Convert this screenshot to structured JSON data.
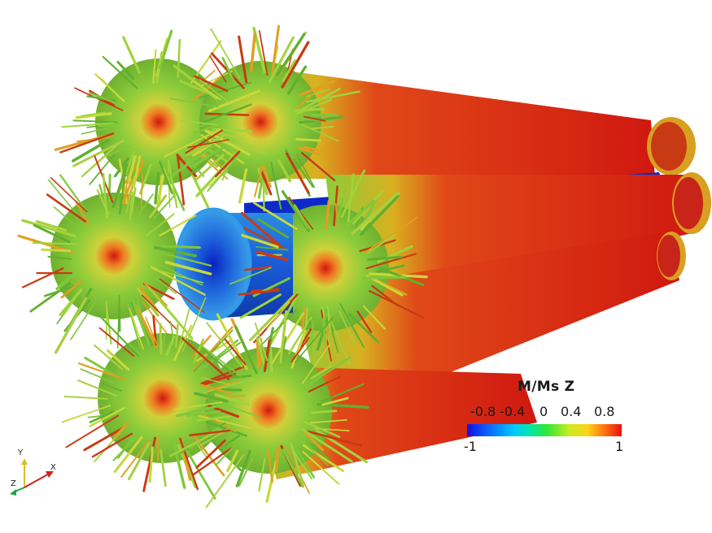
{
  "legend": {
    "title": "M/Ms Z",
    "upper_ticks": [
      "-0.8",
      "-0.4",
      "0",
      "0.4",
      "0.8"
    ],
    "range_min": "-1",
    "range_max": "1",
    "colors": [
      "#1010e0",
      "#00c8ff",
      "#33e633",
      "#ffd21a",
      "#e81010"
    ]
  },
  "orientation_axes": {
    "x": "X",
    "y": "Y",
    "z": "Z"
  },
  "scene": {
    "cylinder_count": 7,
    "colors": {
      "core_red": "#d01810",
      "surface_green": "#8ccc3a",
      "center_blue": "#1a5ad8",
      "edge_blue": "#1f78d8"
    }
  }
}
